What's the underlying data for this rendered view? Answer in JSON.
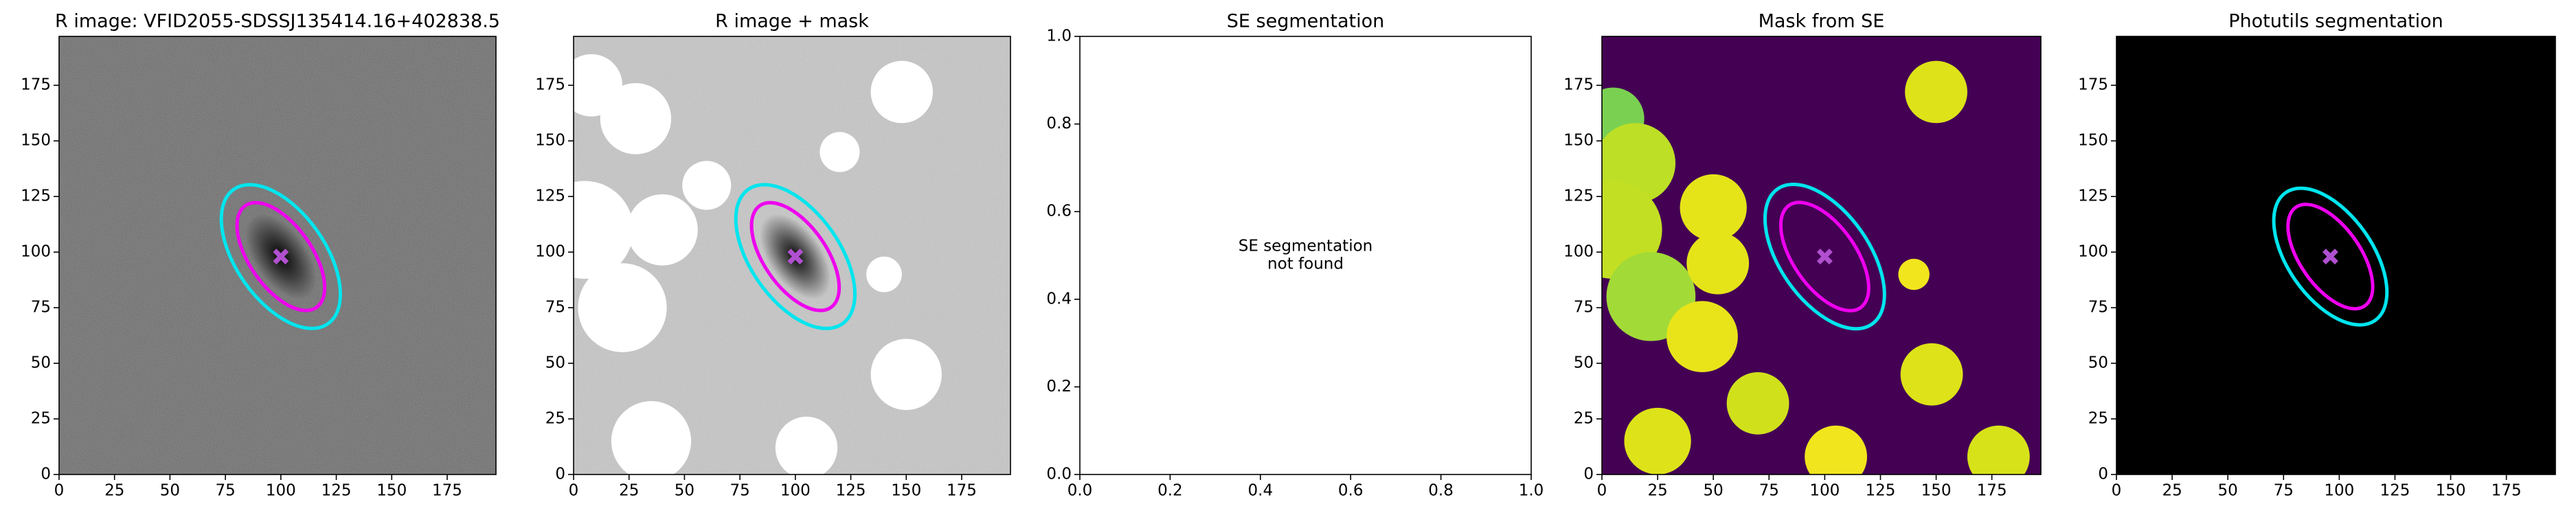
{
  "chart_data": [
    {
      "type": "image",
      "title": "R image: VFID2055-SDSSJ135414.16+402838.5",
      "xlim": [
        0,
        197
      ],
      "ylim": [
        0,
        197
      ],
      "xticks": [
        0,
        25,
        50,
        75,
        100,
        125,
        150,
        175
      ],
      "yticks": [
        0,
        25,
        50,
        75,
        100,
        125,
        150,
        175
      ],
      "background": "#6a6a6a",
      "noise": true,
      "ellipses": [
        {
          "x": 100,
          "y": 98,
          "width": 74,
          "height": 40,
          "angle": -55,
          "color": "#00e5ee"
        },
        {
          "x": 100,
          "y": 98,
          "width": 56,
          "height": 28,
          "angle": -55,
          "color": "#ee00ee"
        }
      ],
      "marker": {
        "x": 100,
        "y": 98,
        "color": "#b050d0"
      }
    },
    {
      "type": "image",
      "title": "R image + mask",
      "xlim": [
        0,
        197
      ],
      "ylim": [
        0,
        197
      ],
      "xticks": [
        0,
        25,
        50,
        75,
        100,
        125,
        150,
        175
      ],
      "yticks": [
        0,
        25,
        50,
        75,
        100,
        125,
        150,
        175
      ],
      "background": "#c8c8c8",
      "noise": true,
      "masks": [
        {
          "x": 8,
          "y": 175,
          "r": 14,
          "color": "#ffffff"
        },
        {
          "x": 28,
          "y": 160,
          "r": 16,
          "color": "#ffffff"
        },
        {
          "x": 5,
          "y": 110,
          "r": 22,
          "color": "#ffffff"
        },
        {
          "x": 22,
          "y": 75,
          "r": 20,
          "color": "#ffffff"
        },
        {
          "x": 40,
          "y": 110,
          "r": 16,
          "color": "#ffffff"
        },
        {
          "x": 35,
          "y": 15,
          "r": 18,
          "color": "#ffffff"
        },
        {
          "x": 105,
          "y": 12,
          "r": 14,
          "color": "#ffffff"
        },
        {
          "x": 150,
          "y": 45,
          "r": 16,
          "color": "#ffffff"
        },
        {
          "x": 148,
          "y": 172,
          "r": 14,
          "color": "#ffffff"
        },
        {
          "x": 140,
          "y": 90,
          "r": 8,
          "color": "#ffffff"
        },
        {
          "x": 120,
          "y": 145,
          "r": 9,
          "color": "#ffffff"
        },
        {
          "x": 60,
          "y": 130,
          "r": 11,
          "color": "#ffffff"
        }
      ],
      "ellipses": [
        {
          "x": 100,
          "y": 98,
          "width": 74,
          "height": 40,
          "angle": -55,
          "color": "#00e5ee"
        },
        {
          "x": 100,
          "y": 98,
          "width": 56,
          "height": 28,
          "angle": -55,
          "color": "#ee00ee"
        }
      ],
      "marker": {
        "x": 100,
        "y": 98,
        "color": "#b050d0"
      }
    },
    {
      "type": "empty",
      "title": "SE segmentation",
      "xlim": [
        0,
        1
      ],
      "ylim": [
        0,
        1
      ],
      "xticks": [
        {
          "value": 0,
          "label": "0.0"
        },
        0.2,
        0.4,
        0.6,
        0.8,
        {
          "value": 1,
          "label": "1.0"
        }
      ],
      "yticks": [
        {
          "value": 0,
          "label": "0.0"
        },
        0.2,
        0.4,
        0.6,
        0.8,
        {
          "value": 1,
          "label": "1.0"
        }
      ],
      "annotation": [
        "SE segmentation",
        "not found"
      ]
    },
    {
      "type": "image",
      "title": "Mask from SE",
      "xlim": [
        0,
        197
      ],
      "ylim": [
        0,
        197
      ],
      "xticks": [
        0,
        25,
        50,
        75,
        100,
        125,
        150,
        175
      ],
      "yticks": [
        0,
        25,
        50,
        75,
        100,
        125,
        150,
        175
      ],
      "background": "#440154",
      "masks": [
        {
          "x": 5,
          "y": 160,
          "r": 14,
          "color": "#7ad151"
        },
        {
          "x": 15,
          "y": 140,
          "r": 18,
          "color": "#bddf26"
        },
        {
          "x": 5,
          "y": 110,
          "r": 22,
          "color": "#c2df23"
        },
        {
          "x": 22,
          "y": 80,
          "r": 20,
          "color": "#a2da37"
        },
        {
          "x": 50,
          "y": 120,
          "r": 15,
          "color": "#e5e419"
        },
        {
          "x": 52,
          "y": 95,
          "r": 14,
          "color": "#e5e419"
        },
        {
          "x": 45,
          "y": 62,
          "r": 16,
          "color": "#e8e419"
        },
        {
          "x": 70,
          "y": 32,
          "r": 14,
          "color": "#d0e11c"
        },
        {
          "x": 25,
          "y": 15,
          "r": 15,
          "color": "#dde318"
        },
        {
          "x": 105,
          "y": 8,
          "r": 14,
          "color": "#f1e51d"
        },
        {
          "x": 148,
          "y": 45,
          "r": 14,
          "color": "#dde318"
        },
        {
          "x": 150,
          "y": 172,
          "r": 14,
          "color": "#dde318"
        },
        {
          "x": 140,
          "y": 90,
          "r": 7,
          "color": "#f1e51d"
        },
        {
          "x": 178,
          "y": 8,
          "r": 14,
          "color": "#d8e219"
        }
      ],
      "ellipses": [
        {
          "x": 100,
          "y": 98,
          "width": 74,
          "height": 40,
          "angle": -55,
          "color": "#00e5ee"
        },
        {
          "x": 100,
          "y": 98,
          "width": 56,
          "height": 28,
          "angle": -55,
          "color": "#ee00ee"
        }
      ],
      "marker": {
        "x": 100,
        "y": 98,
        "color": "#b050d0"
      }
    },
    {
      "type": "image",
      "title": "Photutils segmentation",
      "xlim": [
        0,
        197
      ],
      "ylim": [
        0,
        197
      ],
      "xticks": [
        0,
        25,
        50,
        75,
        100,
        125,
        150,
        175
      ],
      "yticks": [
        0,
        25,
        50,
        75,
        100,
        125,
        150,
        175
      ],
      "background": "#000000",
      "ellipses": [
        {
          "x": 96,
          "y": 98,
          "width": 70,
          "height": 38,
          "angle": -55,
          "color": "#00e5ee"
        },
        {
          "x": 96,
          "y": 98,
          "width": 54,
          "height": 27,
          "angle": -55,
          "color": "#ee00ee"
        }
      ],
      "marker": {
        "x": 96,
        "y": 98,
        "color": "#b050d0"
      }
    }
  ]
}
